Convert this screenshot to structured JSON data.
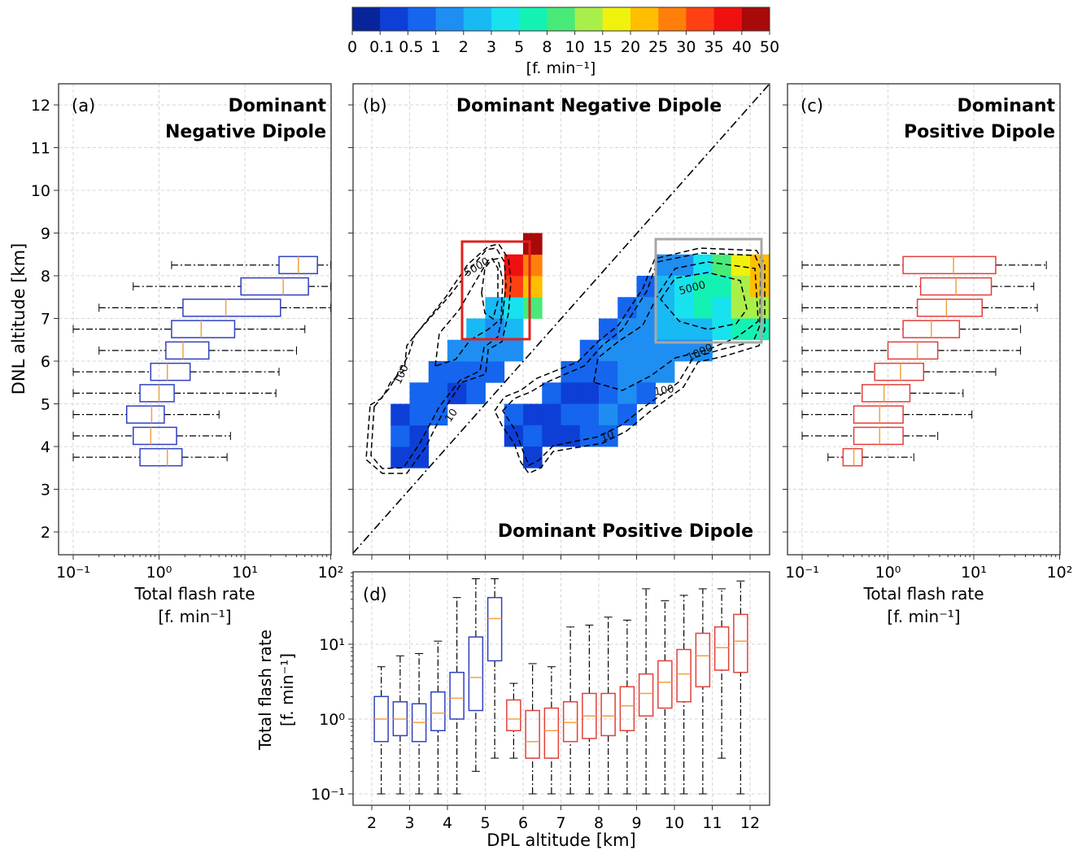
{
  "colorbar": {
    "unit_label": "[f. min⁻¹]",
    "levels": [
      "0",
      "0.1",
      "0.5",
      "1",
      "2",
      "3",
      "5",
      "8",
      "10",
      "15",
      "20",
      "25",
      "30",
      "35",
      "40",
      "50"
    ],
    "colors": [
      "#08249a",
      "#0d3fd6",
      "#1565ee",
      "#1e8ef2",
      "#19b9f4",
      "#17e2ee",
      "#14f2b3",
      "#48ea78",
      "#a9ef4a",
      "#f0f20e",
      "#ffbf00",
      "#ff7f0a",
      "#ff4013",
      "#f01010",
      "#a80a0a"
    ]
  },
  "chart_data": [
    {
      "panel": "(a)",
      "type": "boxplot",
      "orientation": "horizontal",
      "title": "Dominant\nNegative Dipole",
      "xlabel": "Total flash rate\n[f. min⁻¹]",
      "ylabel": "DNL altitude [km]",
      "xscale": "log",
      "xlim": [
        0.08,
        100
      ],
      "ylim": [
        1.5,
        12.5
      ],
      "color": "#3040c0",
      "x_ticks": [
        "10⁻¹",
        "10⁰",
        "10¹",
        "10²"
      ],
      "y_ticks": [
        "2",
        "3",
        "4",
        "5",
        "6",
        "7",
        "8",
        "9",
        "10",
        "11",
        "12"
      ],
      "boxes": [
        {
          "pos": 3.75,
          "whislo": 0.1,
          "q1": 0.6,
          "med": 1.25,
          "q3": 1.85,
          "whishi": 6.2
        },
        {
          "pos": 4.25,
          "whislo": 0.1,
          "q1": 0.5,
          "med": 0.8,
          "q3": 1.6,
          "whishi": 6.8
        },
        {
          "pos": 4.75,
          "whislo": 0.1,
          "q1": 0.42,
          "med": 0.82,
          "q3": 1.15,
          "whishi": 5.0
        },
        {
          "pos": 5.25,
          "whislo": 0.1,
          "q1": 0.6,
          "med": 1.0,
          "q3": 1.5,
          "whishi": 23
        },
        {
          "pos": 5.75,
          "whislo": 0.1,
          "q1": 0.8,
          "med": 1.25,
          "q3": 2.3,
          "whishi": 25
        },
        {
          "pos": 6.25,
          "whislo": 0.2,
          "q1": 1.2,
          "med": 1.9,
          "q3": 3.8,
          "whishi": 40
        },
        {
          "pos": 6.75,
          "whislo": 0.1,
          "q1": 1.4,
          "med": 3.1,
          "q3": 7.6,
          "whishi": 50
        },
        {
          "pos": 7.25,
          "whislo": 0.2,
          "q1": 1.9,
          "med": 6.0,
          "q3": 26,
          "whishi": 100
        },
        {
          "pos": 7.75,
          "whislo": 0.5,
          "q1": 9.0,
          "med": 28,
          "q3": 55,
          "whishi": 100
        },
        {
          "pos": 8.25,
          "whislo": 1.4,
          "q1": 25,
          "med": 42,
          "q3": 70,
          "whishi": 100
        }
      ]
    },
    {
      "panel": "(b)",
      "type": "heatmap",
      "title_top": "Dominant Negative Dipole",
      "title_bottom": "Dominant Positive Dipole",
      "xlim": [
        1.5,
        12.5
      ],
      "ylim": [
        1.5,
        12.5
      ],
      "cell_size": 0.5,
      "contour_labels": [
        "10",
        "100",
        "5000",
        "10",
        "100",
        "1000",
        "5000"
      ],
      "neg_cells": [
        [
          2.5,
          3.5,
          1
        ],
        [
          2.5,
          4.0,
          2
        ],
        [
          2.5,
          4.5,
          1
        ],
        [
          3.0,
          3.5,
          1
        ],
        [
          3.0,
          4.0,
          1
        ],
        [
          3.0,
          4.5,
          2
        ],
        [
          3.0,
          5.0,
          2
        ],
        [
          3.5,
          4.5,
          2
        ],
        [
          3.5,
          5.0,
          2
        ],
        [
          3.5,
          5.5,
          2
        ],
        [
          4.0,
          5.0,
          1
        ],
        [
          4.0,
          5.5,
          2
        ],
        [
          4.0,
          6.0,
          3
        ],
        [
          4.5,
          5.0,
          2
        ],
        [
          4.5,
          5.5,
          2
        ],
        [
          4.5,
          6.0,
          3
        ],
        [
          4.5,
          6.5,
          4
        ],
        [
          5.0,
          5.5,
          2
        ],
        [
          5.0,
          6.0,
          3
        ],
        [
          5.0,
          6.5,
          3
        ],
        [
          5.0,
          7.0,
          4
        ],
        [
          5.5,
          6.0,
          3
        ],
        [
          5.5,
          6.5,
          4
        ],
        [
          5.5,
          7.0,
          5
        ],
        [
          5.5,
          7.5,
          12
        ],
        [
          5.5,
          8.0,
          13
        ],
        [
          6.0,
          7.0,
          7
        ],
        [
          6.0,
          7.5,
          10
        ],
        [
          6.0,
          8.0,
          11
        ],
        [
          6.0,
          8.5,
          14
        ]
      ],
      "pos_cells": [
        [
          5.5,
          4.5,
          2
        ],
        [
          5.5,
          4.0,
          1
        ],
        [
          6.0,
          4.5,
          1
        ],
        [
          6.0,
          4.0,
          2
        ],
        [
          6.0,
          3.5,
          1
        ],
        [
          6.5,
          5.0,
          2
        ],
        [
          6.5,
          4.5,
          1
        ],
        [
          6.5,
          4.0,
          1
        ],
        [
          7.0,
          5.5,
          2
        ],
        [
          7.0,
          5.0,
          1
        ],
        [
          7.0,
          4.5,
          2
        ],
        [
          7.0,
          4.0,
          1
        ],
        [
          7.5,
          6.0,
          2
        ],
        [
          7.5,
          5.5,
          2
        ],
        [
          7.5,
          5.0,
          1
        ],
        [
          7.5,
          4.5,
          2
        ],
        [
          7.5,
          4.0,
          2
        ],
        [
          8.0,
          6.5,
          2
        ],
        [
          8.0,
          6.0,
          3
        ],
        [
          8.0,
          5.5,
          2
        ],
        [
          8.0,
          5.0,
          2
        ],
        [
          8.0,
          4.5,
          3
        ],
        [
          8.0,
          4.0,
          2
        ],
        [
          8.5,
          7.0,
          2
        ],
        [
          8.5,
          6.5,
          3
        ],
        [
          8.5,
          6.0,
          3
        ],
        [
          8.5,
          5.5,
          3
        ],
        [
          8.5,
          5.0,
          3
        ],
        [
          8.5,
          4.5,
          2
        ],
        [
          9.0,
          7.5,
          2
        ],
        [
          9.0,
          7.0,
          3
        ],
        [
          9.0,
          6.5,
          3
        ],
        [
          9.0,
          6.0,
          3
        ],
        [
          9.0,
          5.5,
          3
        ],
        [
          9.0,
          5.0,
          2
        ],
        [
          9.5,
          8.0,
          3
        ],
        [
          9.5,
          7.5,
          4
        ],
        [
          9.5,
          7.0,
          4
        ],
        [
          9.5,
          6.5,
          4
        ],
        [
          9.5,
          6.0,
          3
        ],
        [
          9.5,
          5.5,
          3
        ],
        [
          10.0,
          8.0,
          3
        ],
        [
          10.0,
          7.5,
          5
        ],
        [
          10.0,
          7.0,
          5
        ],
        [
          10.0,
          6.5,
          4
        ],
        [
          10.0,
          6.0,
          3
        ],
        [
          10.5,
          8.0,
          5
        ],
        [
          10.5,
          7.5,
          6
        ],
        [
          10.5,
          7.0,
          6
        ],
        [
          10.5,
          6.5,
          4
        ],
        [
          10.5,
          6.0,
          3
        ],
        [
          11.0,
          8.0,
          7
        ],
        [
          11.0,
          7.5,
          6
        ],
        [
          11.0,
          7.0,
          5
        ],
        [
          11.0,
          6.5,
          5
        ],
        [
          11.5,
          8.0,
          9
        ],
        [
          11.5,
          7.5,
          8
        ],
        [
          11.5,
          7.0,
          8
        ],
        [
          11.5,
          6.5,
          6
        ],
        [
          12.0,
          8.0,
          10
        ],
        [
          12.0,
          7.5,
          10
        ],
        [
          12.0,
          7.0,
          8
        ],
        [
          12.0,
          6.5,
          6
        ]
      ]
    },
    {
      "panel": "(c)",
      "type": "boxplot",
      "orientation": "horizontal",
      "title": "Dominant\nPositive Dipole",
      "xlabel": "Total flash rate\n[f. min⁻¹]",
      "xscale": "log",
      "xlim": [
        0.08,
        100
      ],
      "ylim": [
        1.5,
        12.5
      ],
      "color": "#e0403a",
      "x_ticks": [
        "10⁻¹",
        "10⁰",
        "10¹",
        "10²"
      ],
      "boxes": [
        {
          "pos": 3.75,
          "whislo": 0.2,
          "q1": 0.3,
          "med": 0.4,
          "q3": 0.5,
          "whishi": 2.0
        },
        {
          "pos": 4.25,
          "whislo": 0.1,
          "q1": 0.4,
          "med": 0.8,
          "q3": 1.5,
          "whishi": 3.8
        },
        {
          "pos": 4.75,
          "whislo": 0.1,
          "q1": 0.4,
          "med": 0.8,
          "q3": 1.5,
          "whishi": 9.5
        },
        {
          "pos": 5.25,
          "whislo": 0.1,
          "q1": 0.5,
          "med": 0.9,
          "q3": 1.8,
          "whishi": 7.5
        },
        {
          "pos": 5.75,
          "whislo": 0.1,
          "q1": 0.7,
          "med": 1.4,
          "q3": 2.6,
          "whishi": 18
        },
        {
          "pos": 6.25,
          "whislo": 0.1,
          "q1": 1.0,
          "med": 2.2,
          "q3": 3.8,
          "whishi": 35
        },
        {
          "pos": 6.75,
          "whislo": 0.1,
          "q1": 1.5,
          "med": 3.2,
          "q3": 6.8,
          "whishi": 35
        },
        {
          "pos": 7.25,
          "whislo": 0.1,
          "q1": 2.2,
          "med": 4.8,
          "q3": 12.5,
          "whishi": 55
        },
        {
          "pos": 7.75,
          "whislo": 0.1,
          "q1": 2.4,
          "med": 6.2,
          "q3": 16,
          "whishi": 50
        },
        {
          "pos": 8.25,
          "whislo": 0.1,
          "q1": 1.5,
          "med": 5.8,
          "q3": 18,
          "whishi": 70
        }
      ]
    },
    {
      "panel": "(d)",
      "type": "boxplot",
      "orientation": "vertical",
      "xlabel": "DPL altitude [km]",
      "ylabel": "Total flash rate\n[f. min⁻¹]",
      "yscale": "log",
      "xlim": [
        1.5,
        12.5
      ],
      "ylim": [
        0.07,
        100
      ],
      "x_ticks": [
        "2",
        "3",
        "4",
        "5",
        "6",
        "7",
        "8",
        "9",
        "10",
        "11",
        "12"
      ],
      "y_ticks": [
        "10⁻¹",
        "10⁰",
        "10¹"
      ],
      "negative_color": "#3040c0",
      "positive_color": "#e0403a",
      "negative_boxes": [
        {
          "pos": 2.25,
          "whislo": 0.1,
          "q1": 0.5,
          "med": 1.0,
          "q3": 2.0,
          "whishi": 5.0
        },
        {
          "pos": 2.75,
          "whislo": 0.1,
          "q1": 0.6,
          "med": 1.0,
          "q3": 1.7,
          "whishi": 7.0
        },
        {
          "pos": 3.25,
          "whislo": 0.1,
          "q1": 0.5,
          "med": 0.9,
          "q3": 1.6,
          "whishi": 7.5
        },
        {
          "pos": 3.75,
          "whislo": 0.1,
          "q1": 0.7,
          "med": 1.2,
          "q3": 2.3,
          "whishi": 11
        },
        {
          "pos": 4.25,
          "whislo": 0.1,
          "q1": 1.0,
          "med": 1.9,
          "q3": 4.2,
          "whishi": 42
        },
        {
          "pos": 4.75,
          "whislo": 0.2,
          "q1": 1.3,
          "med": 3.6,
          "q3": 12.5,
          "whishi": 75
        },
        {
          "pos": 5.25,
          "whislo": 0.3,
          "q1": 6.0,
          "med": 22,
          "q3": 42,
          "whishi": 75
        }
      ],
      "positive_boxes": [
        {
          "pos": 5.75,
          "whislo": 0.3,
          "q1": 0.7,
          "med": 1.0,
          "q3": 1.8,
          "whishi": 3.0
        },
        {
          "pos": 6.25,
          "whislo": 0.1,
          "q1": 0.3,
          "med": 0.5,
          "q3": 1.3,
          "whishi": 5.5
        },
        {
          "pos": 6.75,
          "whislo": 0.1,
          "q1": 0.3,
          "med": 0.7,
          "q3": 1.4,
          "whishi": 5.0
        },
        {
          "pos": 7.25,
          "whislo": 0.1,
          "q1": 0.5,
          "med": 0.9,
          "q3": 1.7,
          "whishi": 17
        },
        {
          "pos": 7.75,
          "whislo": 0.1,
          "q1": 0.55,
          "med": 1.1,
          "q3": 2.2,
          "whishi": 18
        },
        {
          "pos": 8.25,
          "whislo": 0.1,
          "q1": 0.6,
          "med": 1.1,
          "q3": 2.2,
          "whishi": 23
        },
        {
          "pos": 8.75,
          "whislo": 0.1,
          "q1": 0.7,
          "med": 1.5,
          "q3": 2.7,
          "whishi": 21
        },
        {
          "pos": 9.25,
          "whislo": 0.1,
          "q1": 1.1,
          "med": 2.2,
          "q3": 4.0,
          "whishi": 55
        },
        {
          "pos": 9.75,
          "whislo": 0.1,
          "q1": 1.4,
          "med": 3.1,
          "q3": 6.0,
          "whishi": 38
        },
        {
          "pos": 10.25,
          "whislo": 0.1,
          "q1": 1.7,
          "med": 4.0,
          "q3": 8.5,
          "whishi": 45
        },
        {
          "pos": 10.75,
          "whislo": 0.1,
          "q1": 2.7,
          "med": 7.0,
          "q3": 14,
          "whishi": 55
        },
        {
          "pos": 11.25,
          "whislo": 0.3,
          "q1": 4.5,
          "med": 9.0,
          "q3": 17,
          "whishi": 55
        },
        {
          "pos": 11.75,
          "whislo": 0.1,
          "q1": 4.2,
          "med": 11,
          "q3": 25,
          "whishi": 70
        }
      ]
    }
  ]
}
